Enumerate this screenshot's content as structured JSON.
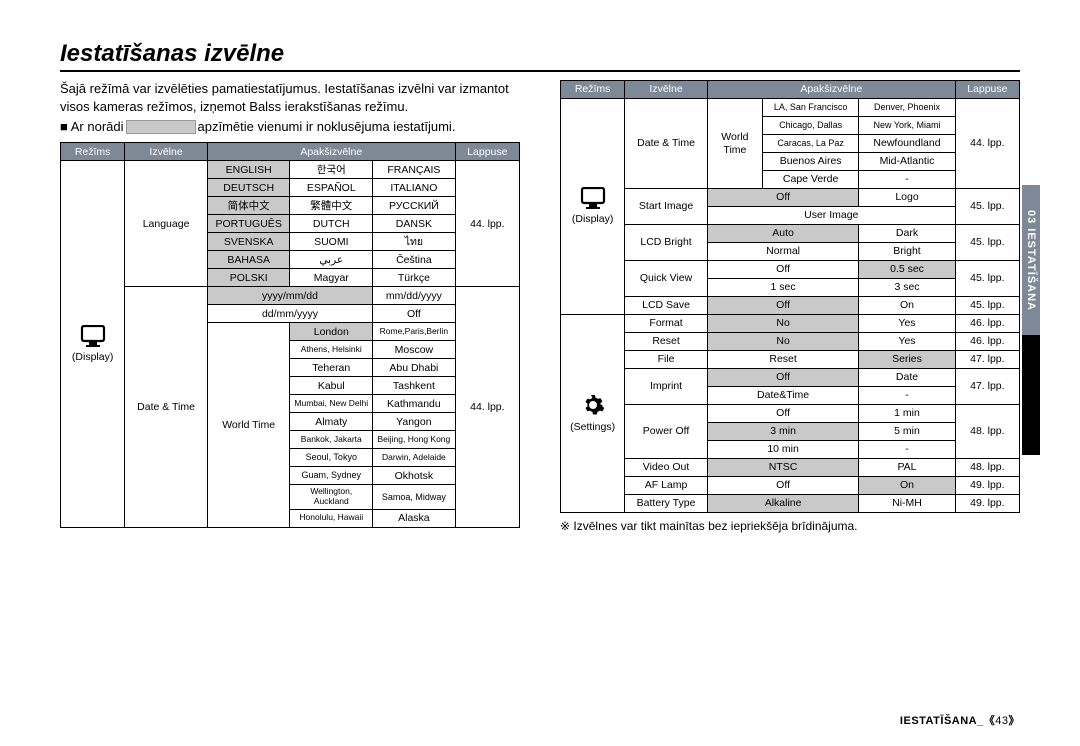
{
  "title": "Iestatīšanas izvēlne",
  "intro1": "Šajā režīmā var izvēlēties pamatiestatījumus. Iestatīšanas izvēlni var izmantot visos kameras režīmos, izņemot Balss ierakstīšanas režīmu.",
  "note_pre": "■ Ar norādi ",
  "note_post": " apzīmētie vienumi ir noklusējuma iestatījumi.",
  "headers": {
    "mode": "Režīms",
    "menu": "Izvēlne",
    "submenu": "Apakšizvēlne",
    "page": "Lappuse"
  },
  "left": {
    "mode_label": "(Display)",
    "language_label": "Language",
    "language": [
      [
        "ENGLISH",
        "한국어",
        "FRANÇAIS"
      ],
      [
        "DEUTSCH",
        "ESPAÑOL",
        "ITALIANO"
      ],
      [
        "简体中文",
        "繁體中文",
        "РУССКИЙ"
      ],
      [
        "PORTUGUÊS",
        "DUTCH",
        "DANSK"
      ],
      [
        "SVENSKA",
        "SUOMI",
        "ไทย"
      ],
      [
        "BAHASA",
        "عربي",
        "Čeština"
      ],
      [
        "POLSKI",
        "Magyar",
        "Türkçe"
      ]
    ],
    "language_default_col": 0,
    "language_page": "44. lpp.",
    "datetime_label": "Date & Time",
    "worldtime_sub": "World Time",
    "date_formats": [
      [
        "yyyy/mm/dd",
        "mm/dd/yyyy"
      ],
      [
        "dd/mm/yyyy",
        "Off"
      ]
    ],
    "date_format_default": "yyyy/mm/dd",
    "cities": [
      [
        "London",
        "Rome,Paris,Berlin"
      ],
      [
        "Athens, Helsinki",
        "Moscow"
      ],
      [
        "Teheran",
        "Abu Dhabi"
      ],
      [
        "Kabul",
        "Tashkent"
      ],
      [
        "Mumbai, New Delhi",
        "Kathmandu"
      ],
      [
        "Almaty",
        "Yangon"
      ],
      [
        "Bankok, Jakarta",
        "Beijing, Hong Kong"
      ],
      [
        "Seoul, Tokyo",
        "Darwin, Adelaide"
      ],
      [
        "Guam, Sydney",
        "Okhotsk"
      ],
      [
        "Wellington, Auckland",
        "Samoa, Midway"
      ],
      [
        "Honolulu, Hawaii",
        "Alaska"
      ]
    ],
    "cities_default": "London",
    "datetime_page": "44. lpp."
  },
  "right": {
    "display_mode_label": "(Display)",
    "settings_mode_label": "(Settings)",
    "datetime_label": "Date & Time",
    "worldtime_sub": "World Time",
    "cities_cont": [
      [
        "LA, San Francisco",
        "Denver, Phoenix"
      ],
      [
        "Chicago, Dallas",
        "New York, Miami"
      ],
      [
        "Caracas, La Paz",
        "Newfoundland"
      ],
      [
        "Buenos Aires",
        "Mid-Atlantic"
      ],
      [
        "Cape Verde",
        "-"
      ]
    ],
    "datetime_page": "44. lpp.",
    "start_image": {
      "label": "Start Image",
      "rows": [
        [
          "Off",
          "Logo"
        ],
        [
          "User Image",
          "-"
        ]
      ],
      "default": "Off",
      "page": "45. lpp.",
      "user_image_span": true
    },
    "lcd_bright": {
      "label": "LCD Bright",
      "rows": [
        [
          "Auto",
          "Dark"
        ],
        [
          "Normal",
          "Bright"
        ]
      ],
      "default": "Auto",
      "page": "45. lpp."
    },
    "quick_view": {
      "label": "Quick View",
      "rows": [
        [
          "Off",
          "0.5 sec"
        ],
        [
          "1 sec",
          "3 sec"
        ]
      ],
      "default": "0.5 sec",
      "page": "45. lpp."
    },
    "lcd_save": {
      "label": "LCD Save",
      "row": [
        "Off",
        "On"
      ],
      "default": "Off",
      "page": "45. lpp."
    },
    "format": {
      "label": "Format",
      "row": [
        "No",
        "Yes"
      ],
      "default": "No",
      "page": "46. lpp."
    },
    "reset": {
      "label": "Reset",
      "row": [
        "No",
        "Yes"
      ],
      "default": "No",
      "page": "46. lpp."
    },
    "file": {
      "label": "File",
      "row": [
        "Reset",
        "Series"
      ],
      "default": "Series",
      "page": "47. lpp."
    },
    "imprint": {
      "label": "Imprint",
      "rows": [
        [
          "Off",
          "Date"
        ],
        [
          "Date&Time",
          "-"
        ]
      ],
      "default": "Off",
      "page": "47. lpp."
    },
    "power_off": {
      "label": "Power Off",
      "rows": [
        [
          "Off",
          "1 min"
        ],
        [
          "3 min",
          "5 min"
        ],
        [
          "10 min",
          "-"
        ]
      ],
      "default": "3 min",
      "page": "48. lpp."
    },
    "video_out": {
      "label": "Video Out",
      "row": [
        "NTSC",
        "PAL"
      ],
      "default": "NTSC",
      "page": "48. lpp."
    },
    "af_lamp": {
      "label": "AF Lamp",
      "row": [
        "Off",
        "On"
      ],
      "default": "On",
      "page": "49. lpp."
    },
    "battery": {
      "label": "Battery Type",
      "row": [
        "Alkaline",
        "Ni-MH"
      ],
      "default": "Alkaline",
      "page": "49. lpp."
    }
  },
  "footnote": "※ Izvēlnes var tikt mainītas bez iepriekšēja brīdinājuma.",
  "footer_label": "IESTATĪŠANA_",
  "footer_page": "43",
  "side_tab": "03 IESTATĪŠANA"
}
